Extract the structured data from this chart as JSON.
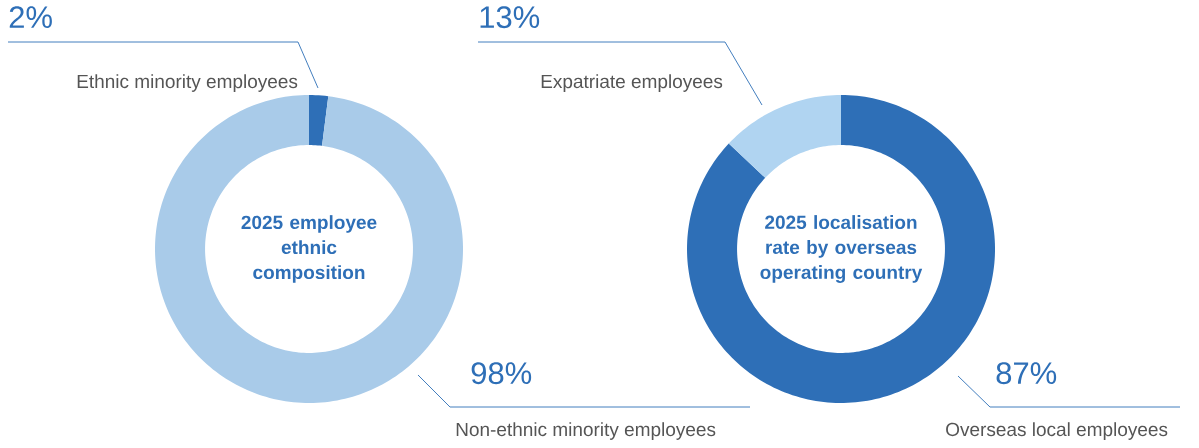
{
  "chart_data": [
    {
      "type": "donut",
      "title": "2025 employee ethnic composition",
      "categories": [
        "Ethnic minority employees",
        "Non-ethnic minority employees"
      ],
      "values": [
        2,
        98
      ],
      "value_labels": [
        "2%",
        "98%"
      ],
      "colors": [
        "#2e6fb7",
        "#a9cbe9"
      ]
    },
    {
      "type": "donut",
      "title": "2025 localisation rate by overseas operating country",
      "categories": [
        "Overseas local employees",
        "Expatriate employees"
      ],
      "values": [
        87,
        13
      ],
      "value_labels": [
        "87%",
        "13%"
      ],
      "colors": [
        "#2e6fb7",
        "#b0d4f1"
      ]
    }
  ]
}
